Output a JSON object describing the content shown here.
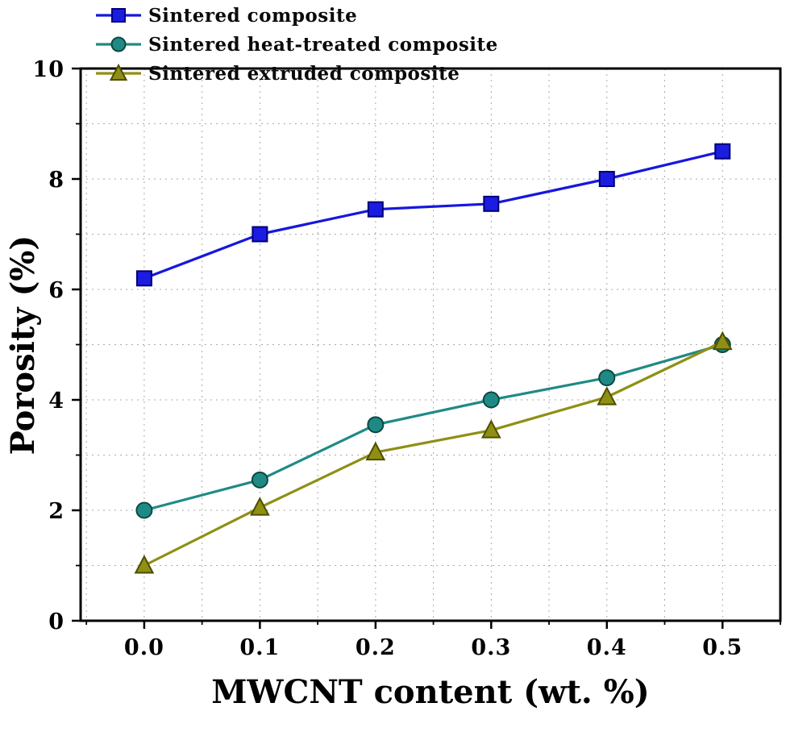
{
  "figure": {
    "background": "#ffffff",
    "axis_color": "#000000",
    "grid_color": "#aaaaaa"
  },
  "chart_data": {
    "type": "line",
    "title": "",
    "xlabel": "MWCNT content (wt. %)",
    "ylabel": "Porosity (%)",
    "x": [
      0.0,
      0.1,
      0.2,
      0.3,
      0.4,
      0.5
    ],
    "x_tick_labels": [
      "0.0",
      "0.1",
      "0.2",
      "0.3",
      "0.4",
      "0.5"
    ],
    "y_ticks": [
      0,
      2,
      4,
      6,
      8,
      10
    ],
    "xlim": [
      -0.055,
      0.55
    ],
    "ylim": [
      0,
      10
    ],
    "grid": {
      "on": true,
      "x_step": 0.05,
      "y_step": 1,
      "style": "dashed"
    },
    "legend_position": "top-left",
    "series": [
      {
        "name": "Sintered composite",
        "marker": "square",
        "color": "#1717dd",
        "marker_fill": "#1c1ce0",
        "marker_edge": "#00007a",
        "values": [
          6.2,
          7.0,
          7.45,
          7.55,
          8.0,
          8.5
        ]
      },
      {
        "name": "Sintered heat-treated composite",
        "marker": "circle",
        "color": "#1f8a85",
        "marker_fill": "#1f8a85",
        "marker_edge": "#0c4743",
        "values": [
          2.0,
          2.55,
          3.55,
          4.0,
          4.4,
          5.0
        ]
      },
      {
        "name": "Sintered extruded composite",
        "marker": "triangle",
        "color": "#8f8f14",
        "marker_fill": "#8f8f14",
        "marker_edge": "#4d4d00",
        "values": [
          1.0,
          2.05,
          3.05,
          3.45,
          4.05,
          5.05
        ]
      }
    ]
  }
}
